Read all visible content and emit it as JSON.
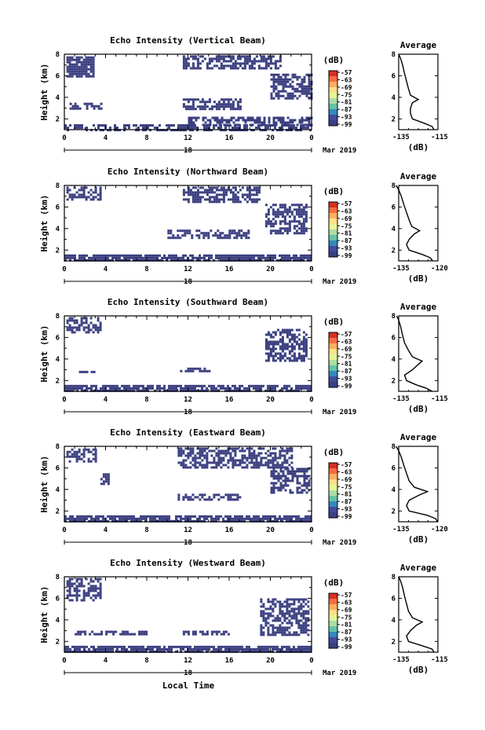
{
  "colorbar": {
    "unit_label": "(dB)",
    "ticks": [
      "-57",
      "-63",
      "-69",
      "-75",
      "-81",
      "-87",
      "-93",
      "-99"
    ],
    "colors": [
      "#d7301f",
      "#f46d43",
      "#fdae61",
      "#fee08b",
      "#e6f598",
      "#abdda4",
      "#66c2a5",
      "#3288bd",
      "#3f4a9b",
      "#3b3f80"
    ]
  },
  "mask_color": "#3b3f80",
  "common": {
    "ylabel": "Height (km)",
    "y_ticks": [
      "2",
      "4",
      "6",
      "8"
    ],
    "x_ticks": [
      "0",
      "4",
      "8",
      "12",
      "16",
      "20",
      "0"
    ],
    "day_label": "18",
    "month_label": "Mar 2019",
    "xlabel": "Local Time",
    "avg_title": "Average",
    "avg_xlabel": "(dB)",
    "avg_y_ticks": [
      "2",
      "4",
      "6",
      "8"
    ]
  },
  "chart_data": [
    {
      "type": "heatmap",
      "title": "Echo Intensity (Vertical Beam)",
      "xlim": [
        0,
        24
      ],
      "ylim": [
        1,
        8
      ],
      "regions": [
        {
          "x": [
            0.2,
            2.8
          ],
          "y": [
            6.0,
            7.8
          ]
        },
        {
          "x": [
            0,
            24
          ],
          "y": [
            1.0,
            1.5
          ]
        },
        {
          "x": [
            12,
            24
          ],
          "y": [
            1.5,
            2.2
          ]
        },
        {
          "x": [
            11.5,
            17
          ],
          "y": [
            3.0,
            3.9
          ]
        },
        {
          "x": [
            11.5,
            21
          ],
          "y": [
            6.8,
            7.9
          ]
        },
        {
          "x": [
            20,
            24
          ],
          "y": [
            3.8,
            6.2
          ]
        },
        {
          "x": [
            0.5,
            3.5
          ],
          "y": [
            3.0,
            3.5
          ]
        }
      ],
      "average": {
        "type": "line",
        "xlim": [
          -135,
          -115
        ],
        "x_ticks": [
          "-135",
          "-115"
        ],
        "height_km": [
          1.0,
          1.3,
          1.6,
          2.0,
          2.5,
          3.0,
          3.5,
          3.8,
          4.2,
          4.8,
          5.5,
          6.2,
          7.0,
          7.6,
          8.0
        ],
        "values_db": [
          -117,
          -118,
          -122,
          -128,
          -129,
          -129,
          -128,
          -125,
          -129,
          -130,
          -131,
          -132,
          -133,
          -134,
          -135
        ]
      }
    },
    {
      "type": "heatmap",
      "title": "Echo Intensity (Northward Beam)",
      "xlim": [
        0,
        24
      ],
      "ylim": [
        1,
        8
      ],
      "regions": [
        {
          "x": [
            0,
            24
          ],
          "y": [
            1.0,
            1.6
          ]
        },
        {
          "x": [
            10,
            18
          ],
          "y": [
            3.2,
            3.9
          ]
        },
        {
          "x": [
            11.5,
            19
          ],
          "y": [
            6.5,
            7.9
          ]
        },
        {
          "x": [
            19.5,
            23.5
          ],
          "y": [
            3.5,
            6.3
          ]
        },
        {
          "x": [
            0.2,
            3.5
          ],
          "y": [
            6.8,
            7.9
          ]
        }
      ],
      "average": {
        "type": "line",
        "xlim": [
          -135,
          -120
        ],
        "x_ticks": [
          "-135",
          "-120"
        ],
        "height_km": [
          1.0,
          1.3,
          1.6,
          2.0,
          2.5,
          3.0,
          3.5,
          3.8,
          4.2,
          4.8,
          5.5,
          6.2,
          7.0,
          7.6,
          8.0
        ],
        "values_db": [
          -122,
          -123,
          -126,
          -131,
          -132,
          -131,
          -129,
          -127,
          -130,
          -131,
          -132,
          -133,
          -134,
          -135,
          -136
        ]
      }
    },
    {
      "type": "heatmap",
      "title": "Echo Intensity (Southward Beam)",
      "xlim": [
        0,
        24
      ],
      "ylim": [
        1,
        8
      ],
      "regions": [
        {
          "x": [
            0,
            24
          ],
          "y": [
            1.0,
            1.6
          ]
        },
        {
          "x": [
            11,
            14
          ],
          "y": [
            2.9,
            3.2
          ]
        },
        {
          "x": [
            0.2,
            3.5
          ],
          "y": [
            6.5,
            7.9
          ]
        },
        {
          "x": [
            0.5,
            3.2
          ],
          "y": [
            2.7,
            2.9
          ]
        },
        {
          "x": [
            19.5,
            23.5
          ],
          "y": [
            3.8,
            6.8
          ]
        }
      ],
      "average": {
        "type": "line",
        "xlim": [
          -135,
          -115
        ],
        "x_ticks": [
          "-135",
          "-115"
        ],
        "height_km": [
          1.0,
          1.3,
          1.6,
          2.0,
          2.5,
          3.0,
          3.5,
          3.8,
          4.2,
          4.8,
          5.5,
          6.2,
          7.0,
          7.6,
          8.0
        ],
        "values_db": [
          -118,
          -121,
          -126,
          -131,
          -132,
          -128,
          -125,
          -123,
          -128,
          -130,
          -132,
          -133,
          -134,
          -135,
          -136
        ]
      }
    },
    {
      "type": "heatmap",
      "title": "Echo Intensity (Eastward Beam)",
      "xlim": [
        0,
        24
      ],
      "ylim": [
        1,
        8
      ],
      "regions": [
        {
          "x": [
            0,
            24
          ],
          "y": [
            1.0,
            1.6
          ]
        },
        {
          "x": [
            11,
            17
          ],
          "y": [
            3.0,
            3.6
          ]
        },
        {
          "x": [
            11,
            22
          ],
          "y": [
            6.0,
            7.9
          ]
        },
        {
          "x": [
            20,
            23.8
          ],
          "y": [
            3.6,
            6.0
          ]
        },
        {
          "x": [
            0.2,
            3.0
          ],
          "y": [
            6.5,
            7.8
          ]
        },
        {
          "x": [
            3.5,
            4.2
          ],
          "y": [
            4.5,
            5.5
          ]
        }
      ],
      "average": {
        "type": "line",
        "xlim": [
          -135,
          -120
        ],
        "x_ticks": [
          "-135",
          "-120"
        ],
        "height_km": [
          1.0,
          1.3,
          1.6,
          2.0,
          2.5,
          3.0,
          3.5,
          3.8,
          4.2,
          4.8,
          5.5,
          6.2,
          7.0,
          7.6,
          8.0
        ],
        "values_db": [
          -120,
          -121,
          -124,
          -131,
          -132,
          -131,
          -127,
          -124,
          -129,
          -131,
          -132,
          -133,
          -134,
          -135,
          -136
        ]
      }
    },
    {
      "type": "heatmap",
      "title": "Echo Intensity (Westward Beam)",
      "xlim": [
        0,
        24
      ],
      "ylim": [
        1,
        8
      ],
      "regions": [
        {
          "x": [
            0,
            24
          ],
          "y": [
            1.0,
            1.6
          ]
        },
        {
          "x": [
            1,
            8
          ],
          "y": [
            2.7,
            3.0
          ]
        },
        {
          "x": [
            0.2,
            3.5
          ],
          "y": [
            5.8,
            7.9
          ]
        },
        {
          "x": [
            11.5,
            16
          ],
          "y": [
            2.6,
            3.0
          ]
        },
        {
          "x": [
            19,
            23.8
          ],
          "y": [
            2.5,
            6.0
          ]
        }
      ],
      "average": {
        "type": "line",
        "xlim": [
          -135,
          -115
        ],
        "x_ticks": [
          "-135",
          "-115"
        ],
        "height_km": [
          1.0,
          1.3,
          1.6,
          2.0,
          2.5,
          3.0,
          3.5,
          3.8,
          4.2,
          4.8,
          5.5,
          6.2,
          7.0,
          7.6,
          8.0
        ],
        "values_db": [
          -117,
          -118,
          -123,
          -130,
          -131,
          -129,
          -126,
          -123,
          -128,
          -130,
          -131,
          -132,
          -133,
          -134,
          -135
        ]
      }
    }
  ]
}
